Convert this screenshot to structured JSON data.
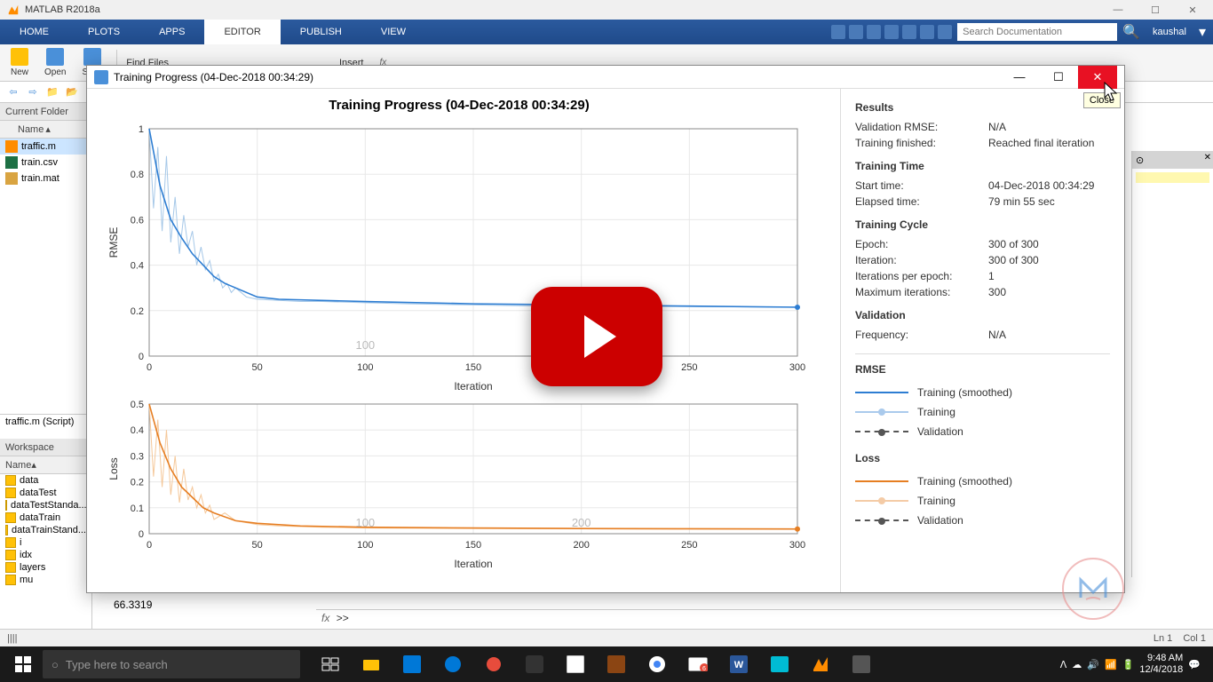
{
  "app_title": "MATLAB R2018a",
  "ribbon": {
    "tabs": [
      "HOME",
      "PLOTS",
      "APPS",
      "EDITOR",
      "PUBLISH",
      "VIEW"
    ],
    "active": 3,
    "search_placeholder": "Search Documentation",
    "user": "kaushal"
  },
  "toolstrip": {
    "buttons": [
      "New",
      "Open",
      "Save"
    ],
    "find_files": "Find Files",
    "insert": "Insert"
  },
  "current_folder": {
    "title": "Current Folder",
    "name_header": "Name",
    "files": [
      {
        "name": "traffic.m",
        "type": "m",
        "sel": true
      },
      {
        "name": "train.csv",
        "type": "csv",
        "sel": false
      },
      {
        "name": "train.mat",
        "type": "mat",
        "sel": false
      }
    ]
  },
  "script_tab": "traffic.m  (Script)",
  "workspace": {
    "title": "Workspace",
    "name_header": "Name",
    "vars": [
      "data",
      "dataTest",
      "dataTestStanda...",
      "dataTrain",
      "dataTrainStand...",
      "i",
      "idx",
      "layers",
      "mu"
    ]
  },
  "cmd_value": "66.3319",
  "fx_prompt": ">>",
  "progress_window": {
    "title": "Training Progress (04-Dec-2018 00:34:29)",
    "chart_title": "Training Progress (04-Dec-2018 00:34:29)",
    "close_tooltip": "Close",
    "chart1": {
      "ylabel": "RMSE",
      "xlabel": "Iteration",
      "ylim": [
        0,
        1.0
      ],
      "yticks": [
        0,
        0.2,
        0.4,
        0.6,
        0.8,
        1.0
      ],
      "xlim": [
        0,
        300
      ],
      "xticks": [
        0,
        50,
        100,
        150,
        200,
        250,
        300
      ],
      "gutter_labels": [
        "100"
      ],
      "line_color": "#2d7dd2",
      "light_color": "#a6c8e8",
      "grid_color": "#e8e8e8",
      "data": [
        [
          0,
          1.0
        ],
        [
          2,
          0.65
        ],
        [
          4,
          0.92
        ],
        [
          6,
          0.55
        ],
        [
          8,
          0.88
        ],
        [
          10,
          0.5
        ],
        [
          12,
          0.7
        ],
        [
          14,
          0.45
        ],
        [
          16,
          0.62
        ],
        [
          18,
          0.48
        ],
        [
          20,
          0.55
        ],
        [
          22,
          0.4
        ],
        [
          24,
          0.48
        ],
        [
          26,
          0.38
        ],
        [
          28,
          0.42
        ],
        [
          30,
          0.33
        ],
        [
          32,
          0.36
        ],
        [
          34,
          0.3
        ],
        [
          36,
          0.32
        ],
        [
          38,
          0.28
        ],
        [
          40,
          0.3
        ],
        [
          45,
          0.26
        ],
        [
          50,
          0.25
        ],
        [
          60,
          0.245
        ],
        [
          70,
          0.24
        ],
        [
          80,
          0.24
        ],
        [
          100,
          0.235
        ],
        [
          120,
          0.23
        ],
        [
          150,
          0.225
        ],
        [
          180,
          0.22
        ],
        [
          200,
          0.22
        ],
        [
          250,
          0.218
        ],
        [
          300,
          0.215
        ]
      ],
      "smoothed": [
        [
          0,
          1.0
        ],
        [
          5,
          0.75
        ],
        [
          10,
          0.6
        ],
        [
          15,
          0.52
        ],
        [
          20,
          0.45
        ],
        [
          25,
          0.4
        ],
        [
          30,
          0.35
        ],
        [
          35,
          0.32
        ],
        [
          40,
          0.3
        ],
        [
          50,
          0.26
        ],
        [
          60,
          0.25
        ],
        [
          80,
          0.245
        ],
        [
          100,
          0.24
        ],
        [
          150,
          0.23
        ],
        [
          200,
          0.225
        ],
        [
          250,
          0.22
        ],
        [
          300,
          0.215
        ]
      ]
    },
    "chart2": {
      "ylabel": "Loss",
      "xlabel": "Iteration",
      "ylim": [
        0,
        0.5
      ],
      "yticks": [
        0,
        0.1,
        0.2,
        0.3,
        0.4,
        0.5
      ],
      "xlim": [
        0,
        300
      ],
      "xticks": [
        0,
        50,
        100,
        150,
        200,
        250,
        300
      ],
      "gutter_labels": [
        "100",
        "200"
      ],
      "line_color": "#e67e22",
      "light_color": "#f5c89a",
      "grid_color": "#e8e8e8",
      "data": [
        [
          0,
          0.5
        ],
        [
          2,
          0.22
        ],
        [
          4,
          0.44
        ],
        [
          6,
          0.18
        ],
        [
          8,
          0.4
        ],
        [
          10,
          0.15
        ],
        [
          12,
          0.3
        ],
        [
          14,
          0.12
        ],
        [
          16,
          0.25
        ],
        [
          18,
          0.13
        ],
        [
          20,
          0.18
        ],
        [
          22,
          0.1
        ],
        [
          24,
          0.15
        ],
        [
          26,
          0.08
        ],
        [
          28,
          0.11
        ],
        [
          30,
          0.055
        ],
        [
          35,
          0.08
        ],
        [
          40,
          0.05
        ],
        [
          50,
          0.035
        ],
        [
          60,
          0.03
        ],
        [
          80,
          0.025
        ],
        [
          100,
          0.022
        ],
        [
          150,
          0.02
        ],
        [
          200,
          0.019
        ],
        [
          250,
          0.018
        ],
        [
          300,
          0.018
        ]
      ],
      "smoothed": [
        [
          0,
          0.5
        ],
        [
          5,
          0.35
        ],
        [
          10,
          0.25
        ],
        [
          15,
          0.18
        ],
        [
          20,
          0.14
        ],
        [
          25,
          0.1
        ],
        [
          30,
          0.08
        ],
        [
          40,
          0.05
        ],
        [
          50,
          0.04
        ],
        [
          70,
          0.03
        ],
        [
          100,
          0.025
        ],
        [
          150,
          0.022
        ],
        [
          200,
          0.02
        ],
        [
          250,
          0.019
        ],
        [
          300,
          0.018
        ]
      ]
    },
    "results": {
      "title": "Results",
      "rows": [
        {
          "k": "Validation RMSE:",
          "v": "N/A"
        },
        {
          "k": "Training finished:",
          "v": "Reached final iteration"
        }
      ]
    },
    "training_time": {
      "title": "Training Time",
      "rows": [
        {
          "k": "Start time:",
          "v": "04-Dec-2018 00:34:29"
        },
        {
          "k": "Elapsed time:",
          "v": "79 min 55 sec"
        }
      ]
    },
    "training_cycle": {
      "title": "Training Cycle",
      "rows": [
        {
          "k": "Epoch:",
          "v": "300 of 300"
        },
        {
          "k": "Iteration:",
          "v": "300 of 300"
        },
        {
          "k": "Iterations per epoch:",
          "v": "1"
        },
        {
          "k": "Maximum iterations:",
          "v": "300"
        }
      ]
    },
    "validation": {
      "title": "Validation",
      "rows": [
        {
          "k": "Frequency:",
          "v": "N/A"
        }
      ]
    },
    "legend": {
      "rmse_title": "RMSE",
      "loss_title": "Loss",
      "items": [
        "Training (smoothed)",
        "Training",
        "Validation"
      ],
      "rmse_color": "#2d7dd2",
      "loss_color": "#e67e22",
      "val_color": "#555"
    }
  },
  "statusbar": {
    "ln": "Ln  1",
    "col": "Col  1"
  },
  "taskbar": {
    "search_placeholder": "Type here to search",
    "time": "9:48 AM",
    "date": "12/4/2018"
  }
}
